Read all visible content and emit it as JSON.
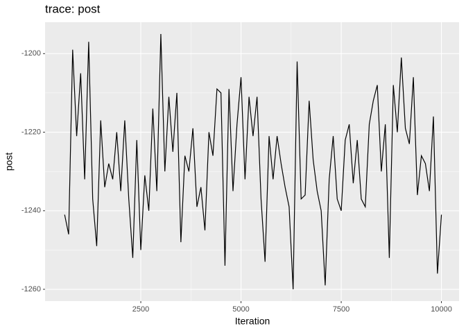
{
  "chart_data": {
    "type": "line",
    "title": "trace: post",
    "x_label": "Iteration",
    "y_label": "post",
    "x": [
      600,
      700,
      800,
      900,
      1000,
      1100,
      1200,
      1300,
      1400,
      1500,
      1600,
      1700,
      1800,
      1900,
      2000,
      2100,
      2200,
      2300,
      2400,
      2500,
      2600,
      2700,
      2800,
      2900,
      3000,
      3100,
      3200,
      3300,
      3400,
      3500,
      3600,
      3700,
      3800,
      3900,
      4000,
      4100,
      4200,
      4300,
      4400,
      4500,
      4600,
      4700,
      4800,
      4900,
      5000,
      5100,
      5200,
      5300,
      5400,
      5500,
      5600,
      5700,
      5800,
      5900,
      6000,
      6100,
      6200,
      6300,
      6400,
      6500,
      6600,
      6700,
      6800,
      6900,
      7000,
      7100,
      7200,
      7300,
      7400,
      7500,
      7600,
      7700,
      7800,
      7900,
      8000,
      8100,
      8200,
      8300,
      8400,
      8500,
      8600,
      8700,
      8800,
      8900,
      9000,
      9100,
      9200,
      9300,
      9400,
      9500,
      9600,
      9700,
      9800,
      9900,
      10000
    ],
    "series": [
      {
        "color": "#000000",
        "values": [
          -1241,
          -1246,
          -1199,
          -1221,
          -1205,
          -1232,
          -1197,
          -1237,
          -1249,
          -1217,
          -1234,
          -1228,
          -1232,
          -1220,
          -1235,
          -1217,
          -1237,
          -1252,
          -1222,
          -1250,
          -1231,
          -1240,
          -1214,
          -1235,
          -1195,
          -1230,
          -1211,
          -1225,
          -1210,
          -1248,
          -1226,
          -1230,
          -1219,
          -1239,
          -1234,
          -1245,
          -1220,
          -1226,
          -1209,
          -1210,
          -1254,
          -1209,
          -1235,
          -1218,
          -1206,
          -1232,
          -1211,
          -1221,
          -1211,
          -1237,
          -1253,
          -1221,
          -1232,
          -1221,
          -1228,
          -1234,
          -1239,
          -1260,
          -1202,
          -1237,
          -1236,
          -1212,
          -1227,
          -1235,
          -1240,
          -1259,
          -1232,
          -1221,
          -1237,
          -1240,
          -1222,
          -1218,
          -1233,
          -1222,
          -1237,
          -1239,
          -1218,
          -1212,
          -1208,
          -1230,
          -1218,
          -1252,
          -1208,
          -1220,
          -1201,
          -1219,
          -1223,
          -1206,
          -1236,
          -1226,
          -1228,
          -1235,
          -1216,
          -1256,
          -1241
        ]
      }
    ],
    "xlim": [
      112,
      10440
    ],
    "ylim": [
      -1263,
      -1192
    ],
    "xticks": [
      2500,
      5000,
      7500,
      10000
    ],
    "yticks": [
      -1260,
      -1240,
      -1220,
      -1200
    ],
    "grid": true
  }
}
